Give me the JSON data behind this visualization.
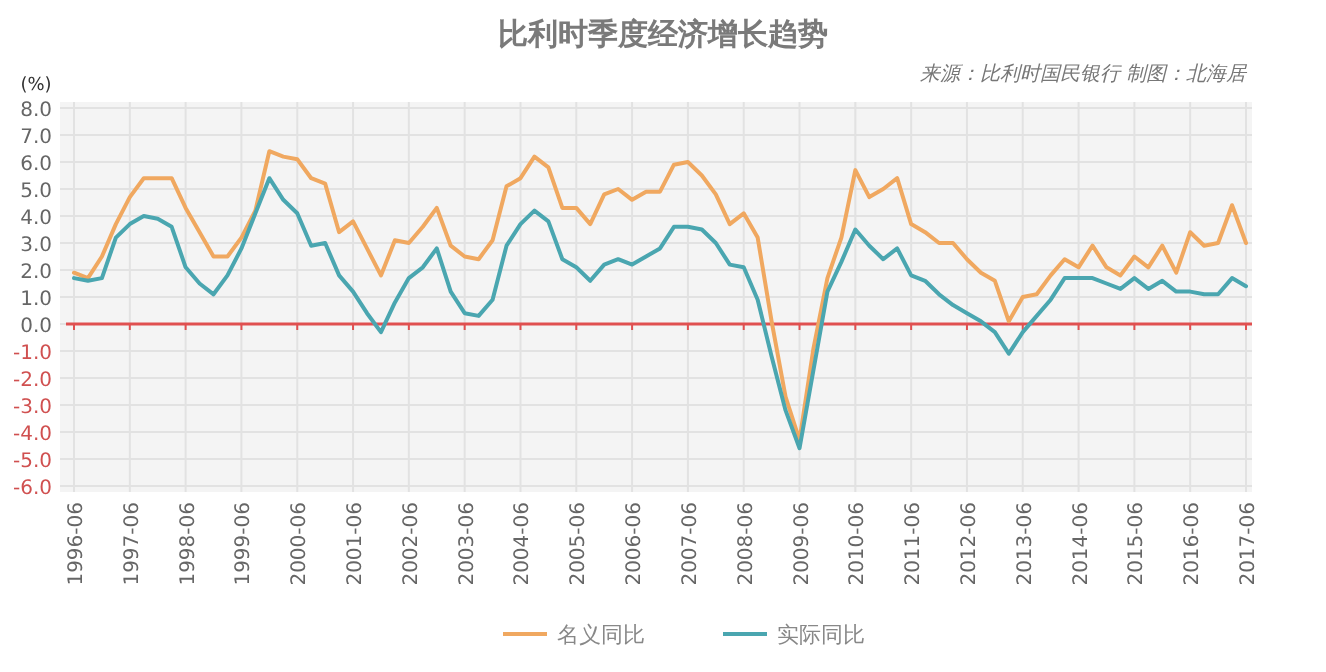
{
  "chart_data": {
    "type": "line",
    "title": "比利时季度经济增长趋势",
    "ylabel": "(%)",
    "annotations": [
      "来源：比利时国民银行 制图：北海居"
    ],
    "x": [
      "1996-06",
      "1996-09",
      "1996-12",
      "1997-03",
      "1997-06",
      "1997-09",
      "1997-12",
      "1998-03",
      "1998-06",
      "1998-09",
      "1998-12",
      "1999-03",
      "1999-06",
      "1999-09",
      "1999-12",
      "2000-03",
      "2000-06",
      "2000-09",
      "2000-12",
      "2001-03",
      "2001-06",
      "2001-09",
      "2001-12",
      "2002-03",
      "2002-06",
      "2002-09",
      "2002-12",
      "2003-03",
      "2003-06",
      "2003-09",
      "2003-12",
      "2004-03",
      "2004-06",
      "2004-09",
      "2004-12",
      "2005-03",
      "2005-06",
      "2005-09",
      "2005-12",
      "2006-03",
      "2006-06",
      "2006-09",
      "2006-12",
      "2007-03",
      "2007-06",
      "2007-09",
      "2007-12",
      "2008-03",
      "2008-06",
      "2008-09",
      "2008-12",
      "2009-03",
      "2009-06",
      "2009-09",
      "2009-12",
      "2010-03",
      "2010-06",
      "2010-09",
      "2010-12",
      "2011-03",
      "2011-06",
      "2011-09",
      "2011-12",
      "2012-03",
      "2012-06",
      "2012-09",
      "2012-12",
      "2013-03",
      "2013-06",
      "2013-09",
      "2013-12",
      "2014-03",
      "2014-06",
      "2014-09",
      "2014-12",
      "2015-03",
      "2015-06",
      "2015-09",
      "2015-12",
      "2016-03",
      "2016-06",
      "2016-09",
      "2016-12",
      "2017-03",
      "2017-06"
    ],
    "series": [
      {
        "name": "名义同比",
        "color": "#f0a860",
        "values": [
          1.9,
          1.7,
          2.5,
          3.7,
          4.7,
          5.4,
          5.4,
          5.4,
          4.3,
          3.4,
          2.5,
          2.5,
          3.2,
          4.2,
          6.4,
          6.2,
          6.1,
          5.4,
          5.2,
          3.4,
          3.8,
          2.8,
          1.8,
          3.1,
          3.0,
          3.6,
          4.3,
          2.9,
          2.5,
          2.4,
          3.1,
          5.1,
          5.4,
          6.2,
          5.8,
          4.3,
          4.3,
          3.7,
          4.8,
          5.0,
          4.6,
          4.9,
          4.9,
          5.9,
          6.0,
          5.5,
          4.8,
          3.7,
          4.1,
          3.2,
          0.1,
          -2.7,
          -4.3,
          -0.9,
          1.7,
          3.2,
          5.7,
          4.7,
          5.0,
          5.4,
          3.7,
          3.4,
          3.0,
          3.0,
          2.4,
          1.9,
          1.6,
          0.1,
          1.0,
          1.1,
          1.8,
          2.4,
          2.1,
          2.9,
          2.1,
          1.8,
          2.5,
          2.1,
          2.9,
          1.9,
          3.4,
          2.9,
          3.0,
          4.4,
          3.0
        ]
      },
      {
        "name": "实际同比",
        "color": "#4aa6b0",
        "values": [
          1.7,
          1.6,
          1.7,
          3.2,
          3.7,
          4.0,
          3.9,
          3.6,
          2.1,
          1.5,
          1.1,
          1.8,
          2.8,
          4.1,
          5.4,
          4.6,
          4.1,
          2.9,
          3.0,
          1.8,
          1.2,
          0.4,
          -0.3,
          0.8,
          1.7,
          2.1,
          2.8,
          1.2,
          0.4,
          0.3,
          0.9,
          2.9,
          3.7,
          4.2,
          3.8,
          2.4,
          2.1,
          1.6,
          2.2,
          2.4,
          2.2,
          2.5,
          2.8,
          3.6,
          3.6,
          3.5,
          3.0,
          2.2,
          2.1,
          0.9,
          -1.2,
          -3.2,
          -4.6,
          -1.7,
          1.2,
          2.3,
          3.5,
          2.9,
          2.4,
          2.8,
          1.8,
          1.6,
          1.1,
          0.7,
          0.4,
          0.1,
          -0.3,
          -1.1,
          -0.3,
          0.3,
          0.9,
          1.7,
          1.7,
          1.7,
          1.5,
          1.3,
          1.7,
          1.3,
          1.6,
          1.2,
          1.2,
          1.1,
          1.1,
          1.7,
          1.4
        ]
      }
    ],
    "xlim": [
      "1996-06",
      "2017-06"
    ],
    "xticks": [
      "1996-06",
      "1997-06",
      "1998-06",
      "1999-06",
      "2000-06",
      "2001-06",
      "2002-06",
      "2003-06",
      "2004-06",
      "2005-06",
      "2006-06",
      "2007-06",
      "2008-06",
      "2009-06",
      "2010-06",
      "2011-06",
      "2012-06",
      "2013-06",
      "2014-06",
      "2015-06",
      "2016-06",
      "2017-06"
    ],
    "ylim": [
      -6,
      8
    ],
    "yticks": [
      {
        "value": 8,
        "label": "8.0"
      },
      {
        "value": 7,
        "label": "7.0"
      },
      {
        "value": 6,
        "label": "6.0"
      },
      {
        "value": 5,
        "label": "5.0"
      },
      {
        "value": 4,
        "label": "4.0"
      },
      {
        "value": 3,
        "label": "3.0"
      },
      {
        "value": 2,
        "label": "2.0"
      },
      {
        "value": 1,
        "label": "1.0"
      },
      {
        "value": 0,
        "label": "0.0"
      },
      {
        "value": -1,
        "label": "-1.0"
      },
      {
        "value": -2,
        "label": "-2.0"
      },
      {
        "value": -3,
        "label": "-3.0"
      },
      {
        "value": -4,
        "label": "-4.0"
      },
      {
        "value": -5,
        "label": "-5.0"
      },
      {
        "value": -6,
        "label": "-6.0"
      }
    ],
    "grid": true,
    "legend": "bottom",
    "ref_lines": [
      {
        "axis": "y",
        "value": 0,
        "color": "#e05050"
      }
    ]
  }
}
